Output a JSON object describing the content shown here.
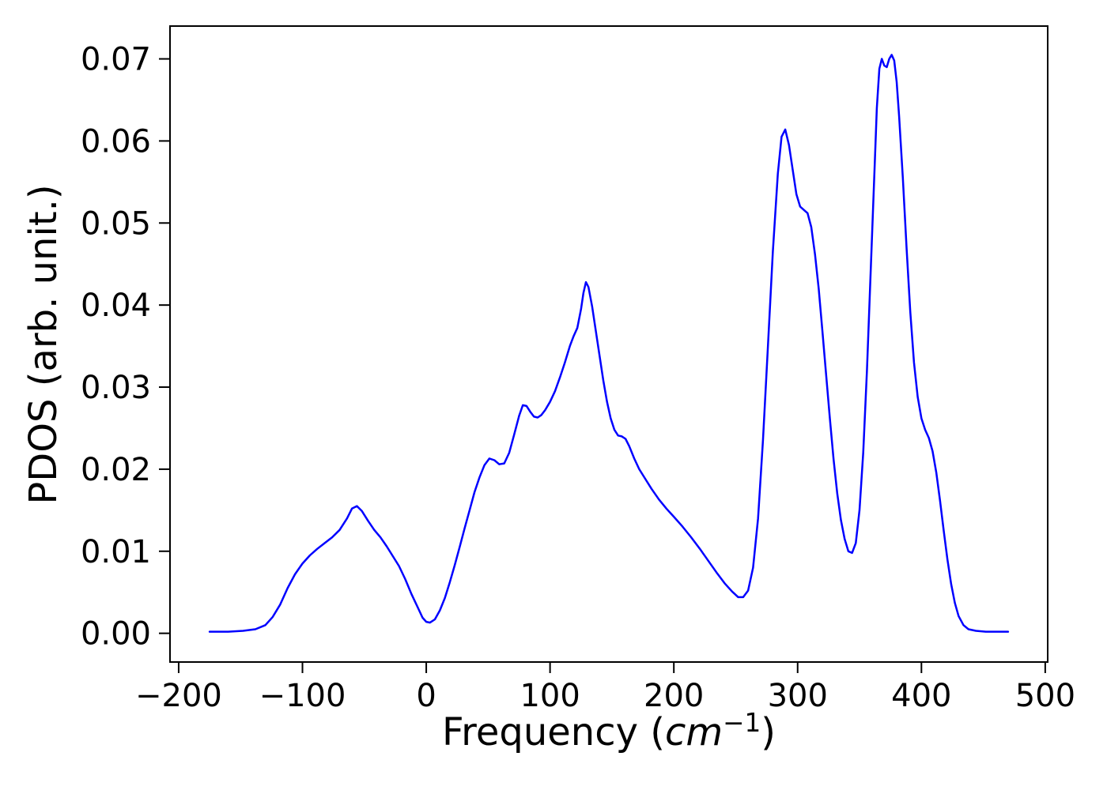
{
  "figure": {
    "background": "#ffffff",
    "axis_color": "#000000"
  },
  "chart_data": {
    "type": "line",
    "title": "",
    "xlabel_parts": {
      "prefix": "Frequency (",
      "italic": "cm",
      "superscript": "−1",
      "suffix": ")"
    },
    "ylabel": "PDOS (arb. unit.)",
    "xlim": [
      -207,
      502
    ],
    "ylim": [
      -0.0035,
      0.074
    ],
    "grid": false,
    "legend": "none",
    "xticks": {
      "values": [
        -200,
        -100,
        0,
        100,
        200,
        300,
        400,
        500
      ],
      "labels": [
        "−200",
        "−100",
        "0",
        "100",
        "200",
        "300",
        "400",
        "500"
      ]
    },
    "yticks": {
      "values": [
        0.0,
        0.01,
        0.02,
        0.03,
        0.04,
        0.05,
        0.06,
        0.07
      ],
      "labels": [
        "0.00",
        "0.01",
        "0.02",
        "0.03",
        "0.04",
        "0.05",
        "0.06",
        "0.07"
      ]
    },
    "series": [
      {
        "name": "PDOS",
        "color": "#0000ff",
        "x": [
          -175,
          -160,
          -148,
          -138,
          -130,
          -124,
          -118,
          -112,
          -106,
          -100,
          -94,
          -88,
          -82,
          -76,
          -70,
          -64,
          -60,
          -56,
          -52,
          -47,
          -42,
          -37,
          -32,
          -27,
          -22,
          -17,
          -12,
          -7,
          -3,
          0,
          3,
          7,
          11,
          15,
          19,
          23,
          27,
          31,
          35,
          39,
          43,
          47,
          51,
          55,
          59,
          63,
          67,
          71,
          75,
          78,
          81,
          84,
          87,
          90,
          93,
          96,
          100,
          104,
          108,
          112,
          116,
          119,
          122,
          125,
          127,
          129,
          131,
          134,
          137,
          140,
          143,
          146,
          149,
          152,
          155,
          158,
          161,
          164,
          168,
          172,
          177,
          182,
          188,
          194,
          200,
          207,
          214,
          221,
          228,
          235,
          241,
          247,
          252,
          256,
          260,
          264,
          268,
          272,
          276,
          280,
          284,
          287,
          290,
          293,
          296,
          299,
          302,
          305,
          308,
          311,
          314,
          317,
          320,
          323,
          326,
          329,
          332,
          335,
          338,
          341,
          344,
          347,
          350,
          353,
          356,
          359,
          362,
          364,
          366,
          368,
          370,
          372,
          374,
          376,
          378,
          380,
          382,
          385,
          388,
          391,
          394,
          397,
          400,
          403,
          406,
          409,
          412,
          415,
          418,
          421,
          424,
          427,
          430,
          434,
          438,
          444,
          452,
          460,
          470
        ],
        "y": [
          0.0002,
          0.0002,
          0.0003,
          0.0005,
          0.001,
          0.002,
          0.0035,
          0.0055,
          0.0072,
          0.0085,
          0.0095,
          0.0103,
          0.011,
          0.0117,
          0.0126,
          0.014,
          0.0152,
          0.0155,
          0.0149,
          0.0137,
          0.0126,
          0.0117,
          0.0106,
          0.0094,
          0.0082,
          0.0066,
          0.0048,
          0.0032,
          0.0019,
          0.0014,
          0.0013,
          0.0017,
          0.0028,
          0.0043,
          0.0062,
          0.0083,
          0.0105,
          0.0128,
          0.015,
          0.0172,
          0.019,
          0.0205,
          0.0213,
          0.0211,
          0.0206,
          0.0207,
          0.022,
          0.0242,
          0.0265,
          0.0278,
          0.0277,
          0.027,
          0.0264,
          0.0263,
          0.0266,
          0.0272,
          0.0282,
          0.0295,
          0.0312,
          0.033,
          0.035,
          0.0362,
          0.0372,
          0.0395,
          0.0415,
          0.0428,
          0.0422,
          0.0398,
          0.0368,
          0.0338,
          0.0308,
          0.0282,
          0.0262,
          0.0248,
          0.0241,
          0.024,
          0.0237,
          0.0228,
          0.0213,
          0.02,
          0.0188,
          0.0176,
          0.0163,
          0.0152,
          0.0142,
          0.013,
          0.0117,
          0.0103,
          0.0088,
          0.0073,
          0.0061,
          0.0051,
          0.0044,
          0.0044,
          0.0052,
          0.008,
          0.014,
          0.0235,
          0.035,
          0.0465,
          0.056,
          0.0605,
          0.0614,
          0.0595,
          0.0565,
          0.0535,
          0.052,
          0.0516,
          0.0512,
          0.0495,
          0.0462,
          0.042,
          0.0368,
          0.0315,
          0.0262,
          0.0212,
          0.017,
          0.0138,
          0.0115,
          0.01,
          0.0098,
          0.011,
          0.015,
          0.022,
          0.032,
          0.044,
          0.056,
          0.064,
          0.0688,
          0.07,
          0.0692,
          0.069,
          0.07,
          0.0705,
          0.0698,
          0.0672,
          0.063,
          0.0555,
          0.047,
          0.0392,
          0.033,
          0.0288,
          0.0262,
          0.0248,
          0.0238,
          0.0222,
          0.0196,
          0.0162,
          0.0125,
          0.009,
          0.006,
          0.0037,
          0.0021,
          0.001,
          0.0005,
          0.0003,
          0.0002,
          0.0002,
          0.0002
        ]
      }
    ]
  }
}
